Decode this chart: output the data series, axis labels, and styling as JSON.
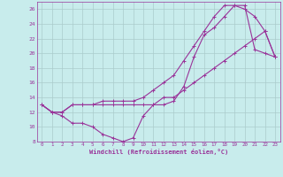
{
  "xlabel": "Windchill (Refroidissement éolien,°C)",
  "bg_color": "#c8ecec",
  "line_color": "#993399",
  "grid_color": "#aacccc",
  "xlim": [
    -0.5,
    23.5
  ],
  "ylim": [
    8,
    27
  ],
  "xticks": [
    0,
    1,
    2,
    3,
    4,
    5,
    6,
    7,
    8,
    9,
    10,
    11,
    12,
    13,
    14,
    15,
    16,
    17,
    18,
    19,
    20,
    21,
    22,
    23
  ],
  "yticks": [
    8,
    10,
    12,
    14,
    16,
    18,
    20,
    22,
    24,
    26
  ],
  "line1_x": [
    0,
    1,
    2,
    3,
    4,
    5,
    6,
    7,
    8,
    9,
    10,
    11,
    12,
    13,
    14,
    15,
    16,
    17,
    18,
    19,
    20,
    21,
    22,
    23
  ],
  "line1_y": [
    13,
    12,
    11.5,
    10.5,
    10.5,
    10,
    9,
    8.5,
    8,
    8.5,
    11.5,
    13,
    13,
    13.5,
    15.5,
    19.5,
    22.5,
    23.5,
    25,
    26.5,
    26.5,
    20.5,
    20,
    19.5
  ],
  "line2_x": [
    0,
    1,
    2,
    3,
    4,
    5,
    6,
    7,
    8,
    9,
    10,
    11,
    12,
    13,
    14,
    15,
    16,
    17,
    18,
    19,
    20,
    21,
    22,
    23
  ],
  "line2_y": [
    13,
    12,
    12,
    13,
    13,
    13,
    13,
    13,
    13,
    13,
    13,
    13,
    14,
    14,
    15,
    16,
    17,
    18,
    19,
    20,
    21,
    22,
    23,
    19.5
  ],
  "line3_x": [
    0,
    1,
    2,
    3,
    4,
    5,
    6,
    7,
    8,
    9,
    10,
    11,
    12,
    13,
    14,
    15,
    16,
    17,
    18,
    19,
    20,
    21,
    22,
    23
  ],
  "line3_y": [
    13,
    12,
    12,
    13,
    13,
    13,
    13.5,
    13.5,
    13.5,
    13.5,
    14,
    15,
    16,
    17,
    19,
    21,
    23,
    25,
    26.5,
    26.5,
    26,
    25,
    23,
    19.5
  ]
}
